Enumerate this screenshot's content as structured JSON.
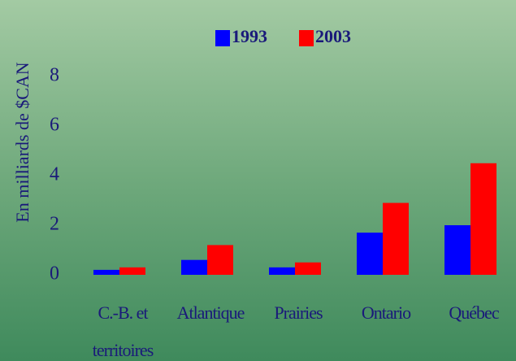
{
  "chart_data": {
    "type": "bar",
    "ylabel": "En milliards de $CAN",
    "categories": [
      "C.-B. et territoires",
      "Atlantique",
      "Prairies",
      "Ontario",
      "Québec"
    ],
    "series": [
      {
        "name": "1993",
        "color": "#0000ff",
        "values": [
          0.2,
          0.6,
          0.3,
          1.7,
          2.0
        ]
      },
      {
        "name": "2003",
        "color": "#ff0000",
        "values": [
          0.3,
          1.2,
          0.5,
          2.9,
          4.5
        ]
      }
    ],
    "ylim": [
      0,
      8
    ],
    "yticks": [
      0,
      2,
      4,
      6,
      8
    ],
    "grid": false
  }
}
